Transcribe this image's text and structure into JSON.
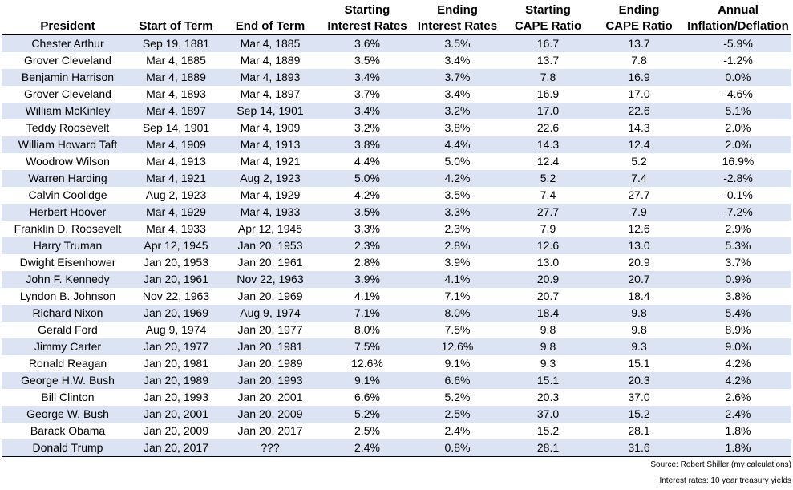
{
  "table": {
    "header": [
      [
        "President"
      ],
      [
        "Start of Term"
      ],
      [
        "End of Term"
      ],
      [
        "Starting",
        "Interest Rates"
      ],
      [
        "Ending",
        "Interest Rates"
      ],
      [
        "Starting",
        "CAPE Ratio"
      ],
      [
        "Ending",
        "CAPE Ratio"
      ],
      [
        "Annual",
        "Inflation/Deflation"
      ]
    ],
    "rows": [
      [
        "Chester Arthur",
        "Sep 19, 1881",
        "Mar 4, 1885",
        "3.6%",
        "3.5%",
        "16.7",
        "13.7",
        "-5.9%"
      ],
      [
        "Grover Cleveland",
        "Mar 4, 1885",
        "Mar 4, 1889",
        "3.5%",
        "3.4%",
        "13.7",
        "7.8",
        "-1.2%"
      ],
      [
        "Benjamin Harrison",
        "Mar 4, 1889",
        "Mar 4, 1893",
        "3.4%",
        "3.7%",
        "7.8",
        "16.9",
        "0.0%"
      ],
      [
        "Grover Cleveland",
        "Mar 4, 1893",
        "Mar 4, 1897",
        "3.7%",
        "3.4%",
        "16.9",
        "17.0",
        "-4.6%"
      ],
      [
        "William McKinley",
        "Mar 4, 1897",
        "Sep 14, 1901",
        "3.4%",
        "3.2%",
        "17.0",
        "22.6",
        "5.1%"
      ],
      [
        "Teddy Roosevelt",
        "Sep 14, 1901",
        "Mar 4, 1909",
        "3.2%",
        "3.8%",
        "22.6",
        "14.3",
        "2.0%"
      ],
      [
        "William Howard Taft",
        "Mar 4, 1909",
        "Mar 4, 1913",
        "3.8%",
        "4.4%",
        "14.3",
        "12.4",
        "2.0%"
      ],
      [
        "Woodrow Wilson",
        "Mar 4, 1913",
        "Mar 4, 1921",
        "4.4%",
        "5.0%",
        "12.4",
        "5.2",
        "16.9%"
      ],
      [
        "Warren Harding",
        "Mar 4, 1921",
        "Aug 2, 1923",
        "5.0%",
        "4.2%",
        "5.2",
        "7.4",
        "-2.8%"
      ],
      [
        "Calvin Coolidge",
        "Aug 2, 1923",
        "Mar 4, 1929",
        "4.2%",
        "3.5%",
        "7.4",
        "27.7",
        "-0.1%"
      ],
      [
        "Herbert Hoover",
        "Mar 4, 1929",
        "Mar 4, 1933",
        "3.5%",
        "3.3%",
        "27.7",
        "7.9",
        "-7.2%"
      ],
      [
        "Franklin D. Roosevelt",
        "Mar 4, 1933",
        "Apr 12, 1945",
        "3.3%",
        "2.3%",
        "7.9",
        "12.6",
        "2.9%"
      ],
      [
        "Harry Truman",
        "Apr 12, 1945",
        "Jan 20, 1953",
        "2.3%",
        "2.8%",
        "12.6",
        "13.0",
        "5.3%"
      ],
      [
        "Dwight Eisenhower",
        "Jan 20, 1953",
        "Jan 20, 1961",
        "2.8%",
        "3.9%",
        "13.0",
        "20.9",
        "3.7%"
      ],
      [
        "John F. Kennedy",
        "Jan 20, 1961",
        "Nov 22, 1963",
        "3.9%",
        "4.1%",
        "20.9",
        "20.7",
        "0.9%"
      ],
      [
        "Lyndon B. Johnson",
        "Nov 22, 1963",
        "Jan 20, 1969",
        "4.1%",
        "7.1%",
        "20.7",
        "18.4",
        "3.8%"
      ],
      [
        "Richard Nixon",
        "Jan 20, 1969",
        "Aug 9, 1974",
        "7.1%",
        "8.0%",
        "18.4",
        "9.8",
        "5.4%"
      ],
      [
        "Gerald Ford",
        "Aug 9, 1974",
        "Jan 20, 1977",
        "8.0%",
        "7.5%",
        "9.8",
        "9.8",
        "8.9%"
      ],
      [
        "Jimmy Carter",
        "Jan 20, 1977",
        "Jan 20, 1981",
        "7.5%",
        "12.6%",
        "9.8",
        "9.3",
        "9.0%"
      ],
      [
        "Ronald Reagan",
        "Jan 20, 1981",
        "Jan 20, 1989",
        "12.6%",
        "9.1%",
        "9.3",
        "15.1",
        "4.2%"
      ],
      [
        "George H.W. Bush",
        "Jan 20, 1989",
        "Jan 20, 1993",
        "9.1%",
        "6.6%",
        "15.1",
        "20.3",
        "4.2%"
      ],
      [
        "Bill Clinton",
        "Jan 20, 1993",
        "Jan 20, 2001",
        "6.6%",
        "5.2%",
        "20.3",
        "37.0",
        "2.6%"
      ],
      [
        "George W. Bush",
        "Jan 20, 2001",
        "Jan 20, 2009",
        "5.2%",
        "2.5%",
        "37.0",
        "15.2",
        "2.4%"
      ],
      [
        "Barack Obama",
        "Jan 20, 2009",
        "Jan 20, 2017",
        "2.5%",
        "2.4%",
        "15.2",
        "28.1",
        "1.8%"
      ],
      [
        "Donald Trump",
        "Jan 20, 2017",
        "???",
        "2.4%",
        "0.8%",
        "28.1",
        "31.6",
        "1.8%"
      ]
    ]
  },
  "notes": [
    "Source: Robert Shiller (my calculations)",
    "Interest rates: 10 year treasury yields"
  ]
}
